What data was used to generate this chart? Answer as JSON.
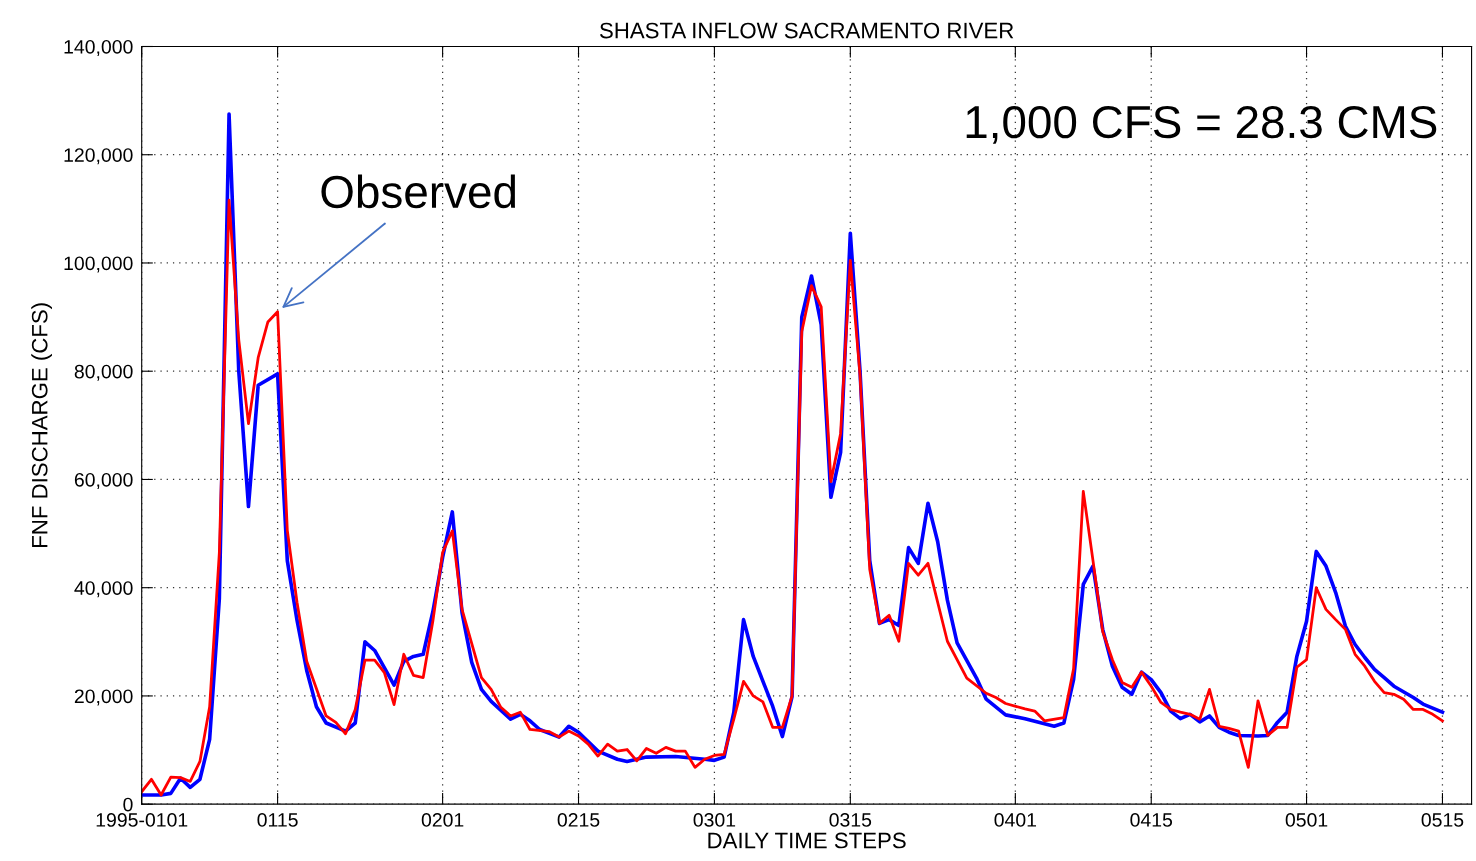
{
  "chart_data": {
    "type": "line",
    "title": "SHASTA INFLOW SACRAMENTO RIVER",
    "xlabel": "DAILY TIME STEPS",
    "ylabel": "FNF DISCHARGE (CFS)",
    "xlim": [
      "1995-01-01",
      "1995-05-18"
    ],
    "xticks": [
      {
        "value": "1995-01-01",
        "label": "1995-0101"
      },
      {
        "value": "1995-01-15",
        "label": "0115"
      },
      {
        "value": "1995-02-01",
        "label": "0201"
      },
      {
        "value": "1995-02-15",
        "label": "0215"
      },
      {
        "value": "1995-03-01",
        "label": "0301"
      },
      {
        "value": "1995-03-15",
        "label": "0315"
      },
      {
        "value": "1995-04-01",
        "label": "0401"
      },
      {
        "value": "1995-04-15",
        "label": "0415"
      },
      {
        "value": "1995-05-01",
        "label": "0501"
      },
      {
        "value": "1995-05-15",
        "label": "0515"
      }
    ],
    "ylim": [
      0,
      140000
    ],
    "yticks": [
      0,
      {
        "value": 20000,
        "label": "20,000"
      },
      {
        "value": 40000,
        "label": "40,000"
      },
      {
        "value": 60000,
        "label": "60,000"
      },
      {
        "value": 80000,
        "label": "80,000"
      },
      {
        "value": 100000,
        "label": "100,000"
      },
      {
        "value": 120000,
        "label": "120,000"
      },
      {
        "value": 140000,
        "label": "140,000"
      }
    ],
    "grid": true,
    "line_style": "solid",
    "marker": "none",
    "annotations": [
      {
        "text": "Observed",
        "x": "1995-01-15",
        "y": 91000
      },
      "1,000 CFS = 28.3 CMS"
    ],
    "series": [
      {
        "color": "#0000ff",
        "x": [
          "1995-01-01",
          "1995-01-03",
          "1995-01-04",
          "1995-01-05",
          "1995-01-06",
          "1995-01-07",
          "1995-01-08",
          "1995-01-09",
          "1995-01-10",
          "1995-01-11",
          "1995-01-12",
          "1995-01-13",
          "1995-01-15",
          "1995-01-16",
          "1995-01-17",
          "1995-01-18",
          "1995-01-19",
          "1995-01-20",
          "1995-01-22",
          "1995-01-23",
          "1995-01-24",
          "1995-01-25",
          "1995-01-27",
          "1995-01-28",
          "1995-01-29",
          "1995-01-30",
          "1995-01-31",
          "1995-02-01",
          "1995-02-02",
          "1995-02-03",
          "1995-02-04",
          "1995-02-05",
          "1995-02-06",
          "1995-02-08",
          "1995-02-09",
          "1995-02-10",
          "1995-02-11",
          "1995-02-13",
          "1995-02-14",
          "1995-02-15",
          "1995-02-17",
          "1995-02-19",
          "1995-02-20",
          "1995-02-22",
          "1995-02-25",
          "1995-02-28",
          "1995-03-01",
          "1995-03-02",
          "1995-03-03",
          "1995-03-04",
          "1995-03-05",
          "1995-03-07",
          "1995-03-08",
          "1995-03-09",
          "1995-03-10",
          "1995-03-11",
          "1995-03-12",
          "1995-03-13",
          "1995-03-14",
          "1995-03-15",
          "1995-03-16",
          "1995-03-17",
          "1995-03-18",
          "1995-03-19",
          "1995-03-20",
          "1995-03-21",
          "1995-03-22",
          "1995-03-23",
          "1995-03-24",
          "1995-03-25",
          "1995-03-26",
          "1995-03-28",
          "1995-03-29",
          "1995-03-31",
          "1995-04-02",
          "1995-04-05",
          "1995-04-06",
          "1995-04-07",
          "1995-04-08",
          "1995-04-09",
          "1995-04-10",
          "1995-04-11",
          "1995-04-12",
          "1995-04-13",
          "1995-04-14",
          "1995-04-15",
          "1995-04-16",
          "1995-04-17",
          "1995-04-18",
          "1995-04-19",
          "1995-04-20",
          "1995-04-21",
          "1995-04-22",
          "1995-04-23",
          "1995-04-24",
          "1995-04-26",
          "1995-04-27",
          "1995-04-28",
          "1995-04-29",
          "1995-04-30",
          "1995-05-01",
          "1995-05-02",
          "1995-05-03",
          "1995-05-04",
          "1995-05-05",
          "1995-05-06",
          "1995-05-07",
          "1995-05-08",
          "1995-05-09",
          "1995-05-10",
          "1995-05-12",
          "1995-05-13",
          "1995-05-15"
        ],
        "values": [
          1700,
          1700,
          2000,
          4800,
          3100,
          4600,
          12000,
          38000,
          127500,
          80000,
          55000,
          77400,
          79500,
          45000,
          34000,
          24700,
          18000,
          15000,
          13500,
          15000,
          30000,
          28400,
          22000,
          26400,
          27300,
          27700,
          35600,
          45600,
          54000,
          35400,
          26200,
          21200,
          19000,
          15700,
          16600,
          15400,
          13800,
          12400,
          14400,
          13300,
          9800,
          8300,
          7900,
          8700,
          8800,
          8300,
          8100,
          8700,
          17000,
          34100,
          27300,
          18100,
          12500,
          19900,
          90000,
          97600,
          88600,
          56700,
          65000,
          105500,
          80000,
          45000,
          33400,
          34100,
          33000,
          47400,
          44500,
          55600,
          48500,
          37700,
          29800,
          23300,
          19400,
          16500,
          15800,
          14400,
          15000,
          23000,
          40600,
          44000,
          32300,
          25500,
          21600,
          20300,
          24400,
          23000,
          20600,
          17200,
          15800,
          16600,
          15200,
          16300,
          14200,
          13300,
          12700,
          12600,
          12700,
          15100,
          17000,
          27300,
          33800,
          46700,
          44000,
          39100,
          32900,
          29500,
          27100,
          24900,
          23400,
          21800,
          19700,
          18500,
          17000
        ]
      },
      {
        "color": "#ff0000",
        "x": [
          "1995-01-01",
          "1995-01-02",
          "1995-01-03",
          "1995-01-04",
          "1995-01-05",
          "1995-01-06",
          "1995-01-07",
          "1995-01-08",
          "1995-01-09",
          "1995-01-10",
          "1995-01-11",
          "1995-01-12",
          "1995-01-13",
          "1995-01-14",
          "1995-01-15",
          "1995-01-16",
          "1995-01-17",
          "1995-01-18",
          "1995-01-20",
          "1995-01-21",
          "1995-01-22",
          "1995-01-23",
          "1995-01-24",
          "1995-01-25",
          "1995-01-26",
          "1995-01-27",
          "1995-01-28",
          "1995-01-29",
          "1995-01-30",
          "1995-01-31",
          "1995-02-01",
          "1995-02-02",
          "1995-02-03",
          "1995-02-05",
          "1995-02-06",
          "1995-02-07",
          "1995-02-08",
          "1995-02-09",
          "1995-02-10",
          "1995-02-12",
          "1995-02-13",
          "1995-02-14",
          "1995-02-15",
          "1995-02-16",
          "1995-02-17",
          "1995-02-18",
          "1995-02-19",
          "1995-02-20",
          "1995-02-21",
          "1995-02-22",
          "1995-02-23",
          "1995-02-24",
          "1995-02-25",
          "1995-02-26",
          "1995-02-27",
          "1995-02-28",
          "1995-03-01",
          "1995-03-02",
          "1995-03-03",
          "1995-03-04",
          "1995-03-05",
          "1995-03-06",
          "1995-03-07",
          "1995-03-08",
          "1995-03-09",
          "1995-03-10",
          "1995-03-11",
          "1995-03-12",
          "1995-03-13",
          "1995-03-14",
          "1995-03-15",
          "1995-03-16",
          "1995-03-17",
          "1995-03-18",
          "1995-03-19",
          "1995-03-20",
          "1995-03-21",
          "1995-03-22",
          "1995-03-23",
          "1995-03-25",
          "1995-03-27",
          "1995-03-29",
          "1995-03-30",
          "1995-03-31",
          "1995-04-02",
          "1995-04-03",
          "1995-04-04",
          "1995-04-06",
          "1995-04-07",
          "1995-04-08",
          "1995-04-09",
          "1995-04-10",
          "1995-04-11",
          "1995-04-12",
          "1995-04-13",
          "1995-04-14",
          "1995-04-15",
          "1995-04-16",
          "1995-04-17",
          "1995-04-18",
          "1995-04-19",
          "1995-04-20",
          "1995-04-21",
          "1995-04-22",
          "1995-04-23",
          "1995-04-24",
          "1995-04-25",
          "1995-04-26",
          "1995-04-27",
          "1995-04-28",
          "1995-04-29",
          "1995-04-30",
          "1995-05-01",
          "1995-05-02",
          "1995-05-03",
          "1995-05-04",
          "1995-05-05",
          "1995-05-06",
          "1995-05-07",
          "1995-05-08",
          "1995-05-09",
          "1995-05-10",
          "1995-05-11",
          "1995-05-12",
          "1995-05-13",
          "1995-05-14",
          "1995-05-15"
        ],
        "values": [
          2300,
          4600,
          1700,
          5000,
          4900,
          4200,
          7900,
          18000,
          46500,
          111600,
          85800,
          70300,
          82500,
          89100,
          91000,
          50600,
          37300,
          26400,
          16300,
          15100,
          13000,
          17500,
          26600,
          26600,
          24300,
          18400,
          27700,
          23800,
          23400,
          33900,
          46500,
          50500,
          36000,
          23400,
          21200,
          17900,
          16300,
          17000,
          13800,
          13400,
          12400,
          13500,
          12600,
          11100,
          8900,
          11100,
          9800,
          10100,
          8000,
          10300,
          9400,
          10500,
          9800,
          9800,
          6800,
          8300,
          9000,
          9200,
          15700,
          22700,
          20000,
          18900,
          14200,
          14200,
          20000,
          87300,
          95800,
          91900,
          59600,
          68500,
          100500,
          79300,
          43400,
          33400,
          34900,
          30100,
          44500,
          42300,
          44500,
          30100,
          23300,
          20500,
          19700,
          18600,
          17600,
          17200,
          15400,
          16000,
          25000,
          57800,
          45000,
          31900,
          26700,
          22500,
          21600,
          24400,
          21800,
          18800,
          17500,
          17000,
          16600,
          15700,
          21200,
          14400,
          14000,
          13500,
          6800,
          19100,
          12700,
          14200,
          14200,
          25300,
          26700,
          40000,
          36000,
          34100,
          32300,
          27700,
          25500,
          22700,
          20600,
          20300,
          19400,
          17500,
          17500,
          16600,
          15400
        ]
      }
    ]
  }
}
